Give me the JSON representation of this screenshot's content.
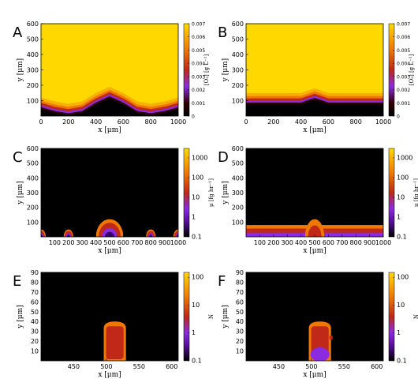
{
  "colors": {
    "high": "#ffd800",
    "mid": "#f07800",
    "low": "#c02818",
    "dark": "#300000",
    "purple": "#8a2be2",
    "background_dark": "#000000"
  },
  "chart_data": [
    {
      "panel": "A",
      "type": "heatmap",
      "xlabel": "x [μm]",
      "ylabel": "y [μm]",
      "xlim": [
        0,
        1000
      ],
      "ylim": [
        0,
        600
      ],
      "xticks": [
        0,
        200,
        400,
        600,
        800,
        1000
      ],
      "yticks": [
        100,
        200,
        300,
        400,
        500,
        600
      ],
      "colorbar": {
        "label": "[O₂] [g L⁻¹]",
        "scale": "linear",
        "min": 0,
        "max": 0.007,
        "ticks": [
          "0",
          "0.001",
          "0.002",
          "0.003",
          "0.004",
          "0.005",
          "0.006",
          "0.007"
        ]
      },
      "front": {
        "x": [
          0,
          100,
          200,
          300,
          400,
          500,
          600,
          700,
          800,
          900,
          1000
        ],
        "y": [
          120,
          95,
          80,
          95,
          150,
          190,
          150,
          95,
          80,
          95,
          120
        ]
      }
    },
    {
      "panel": "B",
      "type": "heatmap",
      "xlabel": "x [μm]",
      "ylabel": "y [μm]",
      "xlim": [
        0,
        1000
      ],
      "ylim": [
        0,
        600
      ],
      "xticks": [
        0,
        200,
        400,
        600,
        800,
        1000
      ],
      "yticks": [
        100,
        200,
        300,
        400,
        500,
        600
      ],
      "colorbar": {
        "label": "[O₂] [g L⁻¹]",
        "scale": "linear",
        "min": 0,
        "max": 0.007,
        "ticks": [
          "0",
          "0.001",
          "0.002",
          "0.003",
          "0.004",
          "0.005",
          "0.006",
          "0.007"
        ]
      },
      "front": {
        "x": [
          0,
          200,
          400,
          450,
          500,
          550,
          600,
          800,
          1000
        ],
        "y": [
          150,
          150,
          150,
          165,
          180,
          165,
          150,
          150,
          150
        ]
      }
    },
    {
      "panel": "C",
      "type": "heatmap",
      "xlabel": "x [μm]",
      "ylabel": "y [μm]",
      "xlim": [
        0,
        1000
      ],
      "ylim": [
        0,
        600
      ],
      "xticks": [
        100,
        200,
        300,
        400,
        500,
        600,
        700,
        800,
        900,
        1000
      ],
      "yticks": [
        100,
        200,
        300,
        400,
        500,
        600
      ],
      "colorbar": {
        "label": "μ [fg hr⁻¹]",
        "scale": "log",
        "min": 0.1,
        "max": 3000,
        "ticks": [
          "0.1",
          "1",
          "10",
          "100",
          "1000"
        ]
      },
      "colonies": [
        {
          "x": 0,
          "half_width": 35,
          "height": 50
        },
        {
          "x": 200,
          "half_width": 35,
          "height": 50
        },
        {
          "x": 500,
          "half_width": 100,
          "height": 120
        },
        {
          "x": 800,
          "half_width": 35,
          "height": 50
        },
        {
          "x": 1000,
          "half_width": 35,
          "height": 50
        }
      ]
    },
    {
      "panel": "D",
      "type": "heatmap",
      "xlabel": "x [μm]",
      "ylabel": "y [μm]",
      "xlim": [
        0,
        1000
      ],
      "ylim": [
        0,
        600
      ],
      "xticks": [
        100,
        200,
        300,
        400,
        500,
        600,
        700,
        800,
        900,
        1000
      ],
      "yticks": [
        100,
        200,
        300,
        400,
        500,
        600
      ],
      "colorbar": {
        "label": "μ [fg hr⁻¹]",
        "scale": "log",
        "min": 0.1,
        "max": 3000,
        "ticks": [
          "0.1",
          "1",
          "10",
          "100",
          "1000"
        ]
      },
      "layer_height": 80,
      "bump": {
        "x": 500,
        "half_width": 70,
        "height": 120
      }
    },
    {
      "panel": "E",
      "type": "heatmap",
      "xlabel": "x [μm]",
      "ylabel": "y [μm]",
      "xlim": [
        400,
        610
      ],
      "ylim": [
        0,
        90
      ],
      "xticks": [
        450,
        500,
        550,
        600
      ],
      "yticks": [
        10,
        20,
        30,
        40,
        50,
        60,
        70,
        80,
        90
      ],
      "colorbar": {
        "label": "N",
        "scale": "log",
        "min": 0.1,
        "max": 150,
        "ticks": [
          "0.1",
          "1",
          "10",
          "100"
        ]
      },
      "colony": {
        "x_center": 513,
        "half_width": 17,
        "y_top": 40
      }
    },
    {
      "panel": "F",
      "type": "heatmap",
      "xlabel": "x [μm]",
      "ylabel": "y [μm]",
      "xlim": [
        400,
        610
      ],
      "ylim": [
        0,
        90
      ],
      "xticks": [
        450,
        500,
        550,
        600
      ],
      "yticks": [
        10,
        20,
        30,
        40,
        50,
        60,
        70,
        80,
        90
      ],
      "colorbar": {
        "label": "N",
        "scale": "log",
        "min": 0.1,
        "max": 150,
        "ticks": [
          "0.1",
          "1",
          "10",
          "100"
        ]
      },
      "colony": {
        "x_center": 513,
        "half_width": 17,
        "y_top": 40
      }
    }
  ]
}
